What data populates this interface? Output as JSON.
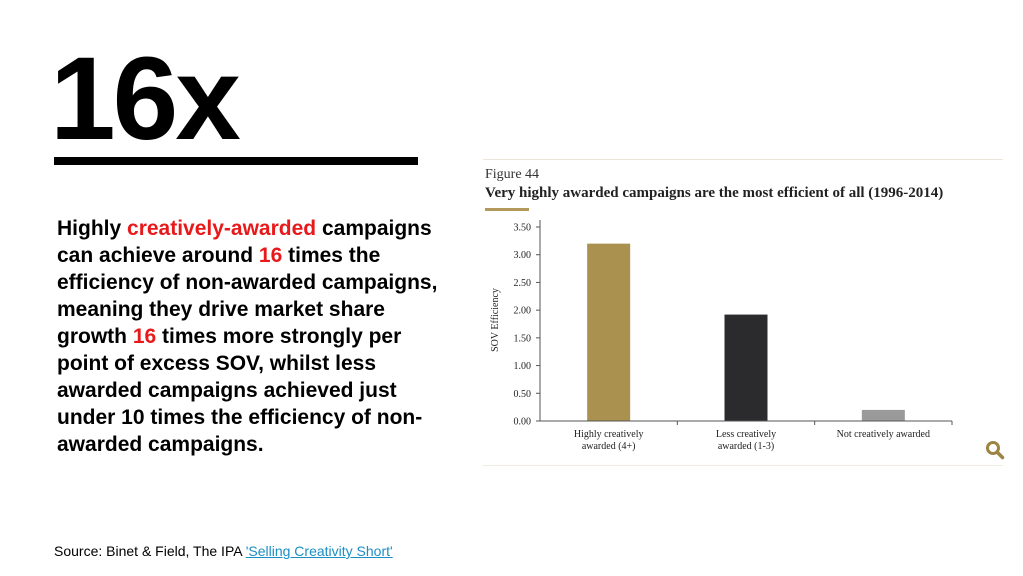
{
  "headline": {
    "stat": "16x"
  },
  "body": {
    "t1": "Highly ",
    "t2": "creatively-awarded",
    "t3": " campaigns can achieve around ",
    "t4": "16",
    "t5": " times the efficiency of non-awarded campaigns, meaning they drive market share growth ",
    "t6": "16",
    "t7": " times more strongly per point of excess SOV, whilst less awarded campaigns achieved just under 10 times the efficiency of non-awarded campaigns."
  },
  "source": {
    "prefix": "Source: Binet & Field, The IPA ",
    "link": "'Selling Creativity Short'"
  },
  "figure": {
    "label": "Figure 44",
    "title": "Very highly awarded campaigns are the most efficient of all (1996-2014)"
  },
  "icons": {
    "zoom": "search-icon"
  },
  "colors": {
    "accent_red": "#e8191b",
    "gold": "#ab9150",
    "dark": "#2b2b2e",
    "grey": "#9a9a9a"
  },
  "chart_data": {
    "type": "bar",
    "categories": [
      "Highly creatively awarded (4+)",
      "Less creatively awarded (1-3)",
      "Not creatively awarded"
    ],
    "category_lines": [
      [
        "Highly creatively",
        "awarded (4+)"
      ],
      [
        "Less creatively",
        "awarded (1-3)"
      ],
      [
        "Not creatively awarded"
      ]
    ],
    "values": [
      3.2,
      1.92,
      0.2
    ],
    "bar_colors": [
      "#ab9150",
      "#2b2b2e",
      "#9a9a9a"
    ],
    "ylabel": "SOV Efficiency",
    "xlabel": "",
    "ylim": [
      0,
      3.5
    ],
    "yticks": [
      "0.00",
      "0.50",
      "1.00",
      "1.50",
      "2.00",
      "2.50",
      "3.00",
      "3.50"
    ],
    "grid": false
  }
}
